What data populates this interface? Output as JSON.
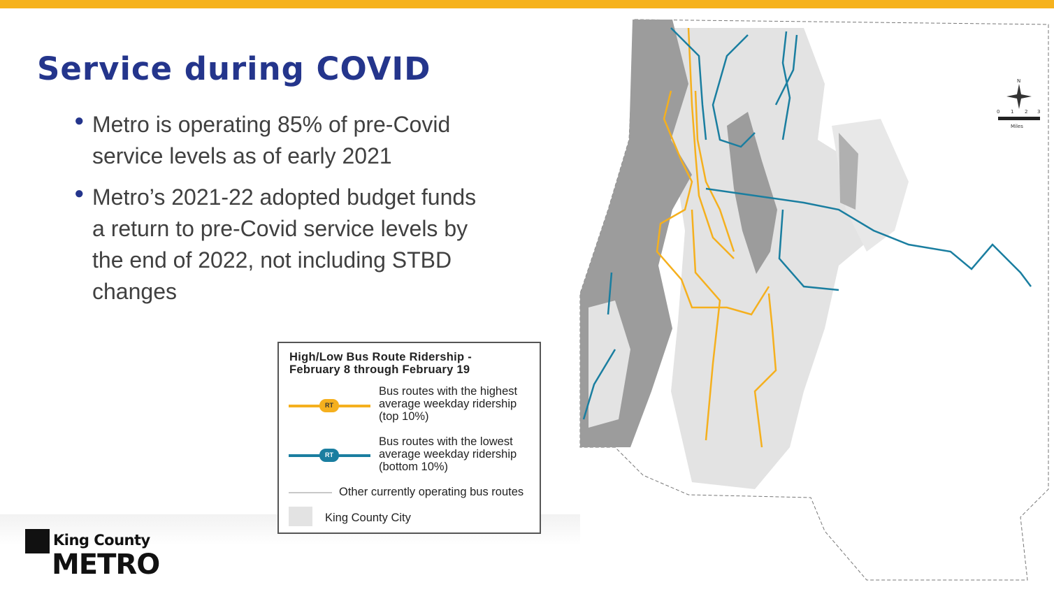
{
  "slide": {
    "title": "Service during COVID",
    "bullets": [
      "Metro is operating 85% of pre-Covid service levels as of early 2021",
      "Metro’s 2021-22 adopted budget funds a return to pre-Covid service levels by the end of 2022, not including STBD changes"
    ]
  },
  "colors": {
    "accent_bar": "#F6B21C",
    "title": "#24358C",
    "high_route": "#F5B01E",
    "low_route": "#1A7EA0",
    "other_route": "#cfcfcf",
    "city": "#e3e3e3",
    "water": "#9c9c9c"
  },
  "legend": {
    "title_line1": "High/Low Bus Route Ridership -",
    "title_line2": "February 8 through February 19",
    "items": [
      {
        "label": "Bus routes with the highest average weekday ridership (top 10%)",
        "badge": "RT"
      },
      {
        "label": "Bus routes with the lowest average weekday ridership (bottom 10%)",
        "badge": "RT"
      },
      {
        "label": "Other currently operating bus routes"
      },
      {
        "label": "King County City"
      }
    ]
  },
  "logo": {
    "line1": "King County",
    "line2": "METRO"
  },
  "map": {
    "north_arrow": "N",
    "scale_ticks": [
      "0",
      "1",
      "2",
      "3"
    ],
    "scale_unit": "Miles"
  }
}
